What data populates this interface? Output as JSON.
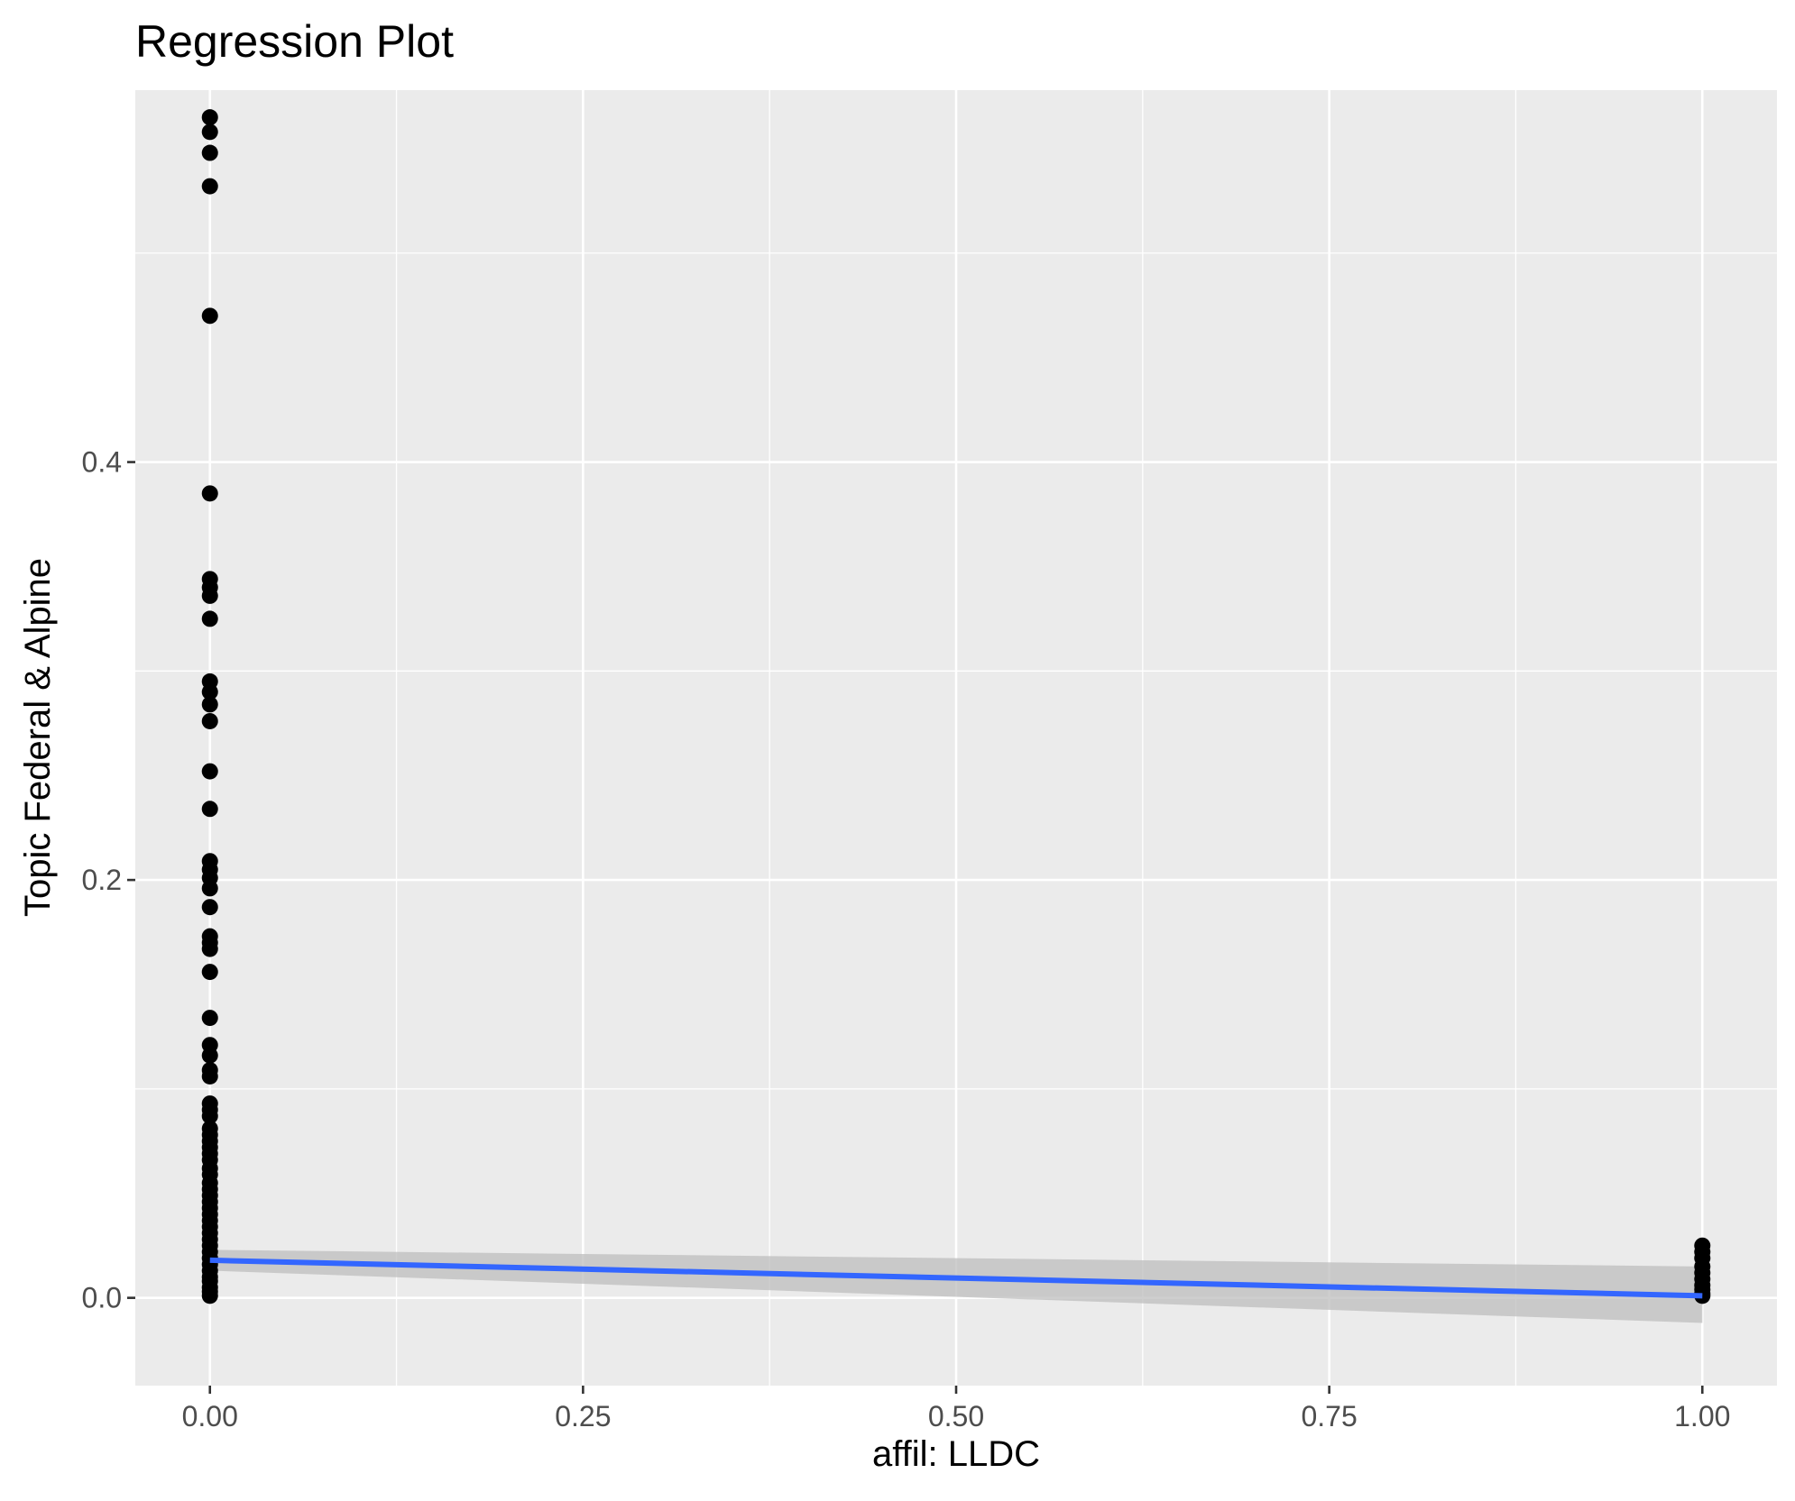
{
  "chart_data": {
    "type": "scatter",
    "title": "Regression Plot",
    "xlabel": "affil: LLDC",
    "ylabel": "Topic Federal & Alpine",
    "xlim": [
      -0.05,
      1.05
    ],
    "ylim": [
      -0.042,
      0.578
    ],
    "x_ticks": [
      0.0,
      0.25,
      0.5,
      0.75,
      1.0
    ],
    "x_tick_labels": [
      "0.00",
      "0.25",
      "0.50",
      "0.75",
      "1.00"
    ],
    "y_ticks": [
      0.0,
      0.2,
      0.4
    ],
    "y_tick_labels": [
      "0.0",
      "0.2",
      "0.4"
    ],
    "grid": true,
    "series": [
      {
        "kind": "points",
        "points": [
          {
            "x": 0,
            "y": 0.565
          },
          {
            "x": 0,
            "y": 0.558
          },
          {
            "x": 0,
            "y": 0.548
          },
          {
            "x": 0,
            "y": 0.532
          },
          {
            "x": 0,
            "y": 0.47
          },
          {
            "x": 0,
            "y": 0.385
          },
          {
            "x": 0,
            "y": 0.344
          },
          {
            "x": 0,
            "y": 0.34
          },
          {
            "x": 0,
            "y": 0.336
          },
          {
            "x": 0,
            "y": 0.325
          },
          {
            "x": 0,
            "y": 0.295
          },
          {
            "x": 0,
            "y": 0.29
          },
          {
            "x": 0,
            "y": 0.284
          },
          {
            "x": 0,
            "y": 0.276
          },
          {
            "x": 0,
            "y": 0.252
          },
          {
            "x": 0,
            "y": 0.234
          },
          {
            "x": 0,
            "y": 0.209
          },
          {
            "x": 0,
            "y": 0.205
          },
          {
            "x": 0,
            "y": 0.201
          },
          {
            "x": 0,
            "y": 0.196
          },
          {
            "x": 0,
            "y": 0.187
          },
          {
            "x": 0,
            "y": 0.173
          },
          {
            "x": 0,
            "y": 0.17
          },
          {
            "x": 0,
            "y": 0.167
          },
          {
            "x": 0,
            "y": 0.156
          },
          {
            "x": 0,
            "y": 0.134
          },
          {
            "x": 0,
            "y": 0.121
          },
          {
            "x": 0,
            "y": 0.116
          },
          {
            "x": 0,
            "y": 0.109
          },
          {
            "x": 0,
            "y": 0.106
          },
          {
            "x": 0,
            "y": 0.093
          },
          {
            "x": 0,
            "y": 0.09
          },
          {
            "x": 0,
            "y": 0.087
          },
          {
            "x": 0,
            "y": 0.081
          },
          {
            "x": 0,
            "y": 0.078
          },
          {
            "x": 0,
            "y": 0.075
          },
          {
            "x": 0,
            "y": 0.072
          },
          {
            "x": 0,
            "y": 0.069
          },
          {
            "x": 0,
            "y": 0.066
          },
          {
            "x": 0,
            "y": 0.062
          },
          {
            "x": 0,
            "y": 0.059
          },
          {
            "x": 0,
            "y": 0.055
          },
          {
            "x": 0,
            "y": 0.052
          },
          {
            "x": 0,
            "y": 0.049
          },
          {
            "x": 0,
            "y": 0.046
          },
          {
            "x": 0,
            "y": 0.043
          },
          {
            "x": 0,
            "y": 0.04
          },
          {
            "x": 0,
            "y": 0.037
          },
          {
            "x": 0,
            "y": 0.034
          },
          {
            "x": 0,
            "y": 0.031
          },
          {
            "x": 0,
            "y": 0.028
          },
          {
            "x": 0,
            "y": 0.025
          },
          {
            "x": 0,
            "y": 0.022
          },
          {
            "x": 0,
            "y": 0.019
          },
          {
            "x": 0,
            "y": 0.016
          },
          {
            "x": 0,
            "y": 0.013
          },
          {
            "x": 0,
            "y": 0.01
          },
          {
            "x": 0,
            "y": 0.008
          },
          {
            "x": 0,
            "y": 0.005
          },
          {
            "x": 0,
            "y": 0.003
          },
          {
            "x": 0,
            "y": 0.001
          },
          {
            "x": 1,
            "y": 0.025
          },
          {
            "x": 1,
            "y": 0.022
          },
          {
            "x": 1,
            "y": 0.019
          },
          {
            "x": 1,
            "y": 0.015
          },
          {
            "x": 1,
            "y": 0.012
          },
          {
            "x": 1,
            "y": 0.009
          },
          {
            "x": 1,
            "y": 0.006
          },
          {
            "x": 1,
            "y": 0.004
          },
          {
            "x": 1,
            "y": 0.002
          },
          {
            "x": 1,
            "y": 0.001
          }
        ]
      },
      {
        "kind": "regression-line",
        "x": [
          0,
          1
        ],
        "y": [
          0.018,
          0.001
        ],
        "ci_lower": [
          0.013,
          -0.012
        ],
        "ci_upper": [
          0.023,
          0.015
        ]
      }
    ]
  },
  "colors": {
    "panel": "#ebebeb",
    "grid": "#ffffff",
    "points": "#000000",
    "line": "#3366ff",
    "ribbon": "#bebebe"
  }
}
